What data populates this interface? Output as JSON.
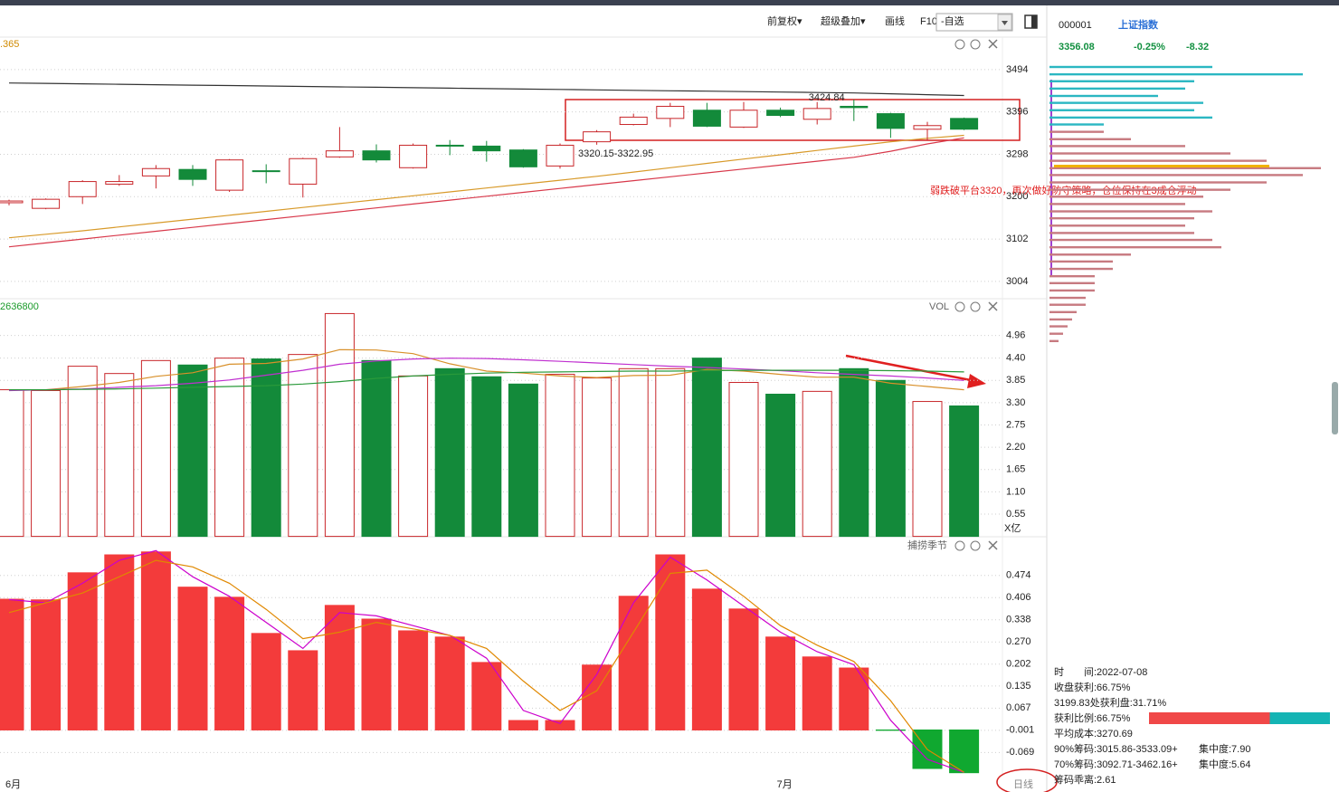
{
  "toolbar": {
    "items": [
      "前复权▾",
      "超级叠加▾",
      "画线",
      "F10"
    ],
    "watchlist": "-自选"
  },
  "stock_info": {
    "code": "000001",
    "name": "上证指数",
    "price": "3356.08",
    "change_pct": "-0.25%",
    "change": "-8.32"
  },
  "chip_stats": {
    "rows": [
      [
        "时　　间:2022-07-08"
      ],
      [
        "收盘获利:66.75%"
      ],
      [
        "3199.83处获利盘:31.71%"
      ],
      [
        "获利比例:66.75%"
      ],
      [
        "平均成本:3270.69"
      ],
      [
        "90%筹码:3015.86-3533.09+",
        "集中度:7.90"
      ],
      [
        "70%筹码:3092.71-3462.16+",
        "集中度:5.64"
      ],
      [
        "筹码乖离:2.61"
      ]
    ],
    "profit_ratio": 66.75
  },
  "period": "日线",
  "chart_data": [
    {
      "type": "candlestick",
      "corner_label": ".365",
      "open": [
        3186,
        3173,
        3200,
        3229,
        3248,
        3263,
        3215,
        3260,
        3229,
        3292,
        3306,
        3267,
        3319,
        3317,
        3308,
        3271,
        3327,
        3367,
        3381,
        3400,
        3361,
        3400,
        3379,
        3409,
        3392,
        3356,
        3381
      ],
      "high": [
        3193,
        3196,
        3238,
        3250,
        3273,
        3273,
        3287,
        3275,
        3290,
        3361,
        3321,
        3323,
        3331,
        3329,
        3310,
        3323,
        3354,
        3392,
        3417,
        3417,
        3419,
        3406,
        3419,
        3424.84,
        3394,
        3373,
        3383
      ],
      "low": [
        3180,
        3171,
        3183,
        3225,
        3219,
        3225,
        3211,
        3231,
        3198,
        3290,
        3279,
        3265,
        3296,
        3281,
        3267,
        3265,
        3320.15,
        3365,
        3361,
        3361,
        3359,
        3384,
        3367,
        3375,
        3336,
        3331,
        3354
      ],
      "close": [
        3190,
        3194,
        3235,
        3235,
        3265,
        3240,
        3285,
        3258,
        3288,
        3306,
        3285,
        3319,
        3317,
        3306,
        3269,
        3319,
        3350,
        3384,
        3409,
        3363,
        3400,
        3388,
        3404,
        3406,
        3358,
        3364.4,
        3356.08
      ],
      "up_color": "#c8262a",
      "down_color": "#138a3a",
      "lines": [
        {
          "color": "#333333",
          "values": [
            3463,
            3462,
            3461,
            3460,
            3459,
            3458,
            3457,
            3456,
            3455,
            3454,
            3453,
            3452,
            3451,
            3450,
            3449,
            3448,
            3447,
            3446,
            3445,
            3444,
            3443,
            3442,
            3441,
            3440,
            3438,
            3436,
            3434
          ]
        },
        {
          "color": "#d89a2a",
          "values": [
            3105,
            3113,
            3121,
            3130,
            3139,
            3148,
            3157,
            3166,
            3175,
            3184,
            3193,
            3202,
            3211,
            3220,
            3229,
            3238,
            3247,
            3257,
            3267,
            3277,
            3287,
            3297,
            3307,
            3317,
            3327,
            3335,
            3342
          ]
        },
        {
          "color": "#d8384a",
          "values": [
            3084,
            3093,
            3102,
            3111,
            3120,
            3129,
            3138,
            3147,
            3156,
            3165,
            3174,
            3183,
            3192,
            3201,
            3210,
            3219,
            3228,
            3237,
            3246,
            3255,
            3264,
            3273,
            3282,
            3291,
            3305,
            3322,
            3336
          ]
        }
      ],
      "annotations": [
        "3320.15-3322.95",
        "弱跌破平台3320，再次做好防守策略，仓位保持在3成仓浮动"
      ],
      "ylim": [
        2964,
        3567
      ],
      "yticks": [
        3004,
        3102,
        3200,
        3298,
        3396,
        3494
      ],
      "grid": true
    },
    {
      "type": "bar",
      "title": "VOL",
      "corner_label": "2636800",
      "unit": "X亿",
      "values": [
        3.62,
        3.6,
        4.2,
        4.02,
        4.34,
        4.23,
        4.4,
        4.38,
        4.49,
        5.5,
        4.34,
        3.96,
        4.14,
        3.94,
        3.76,
        4.0,
        3.91,
        4.14,
        4.14,
        4.4,
        3.8,
        3.51,
        3.58,
        4.14,
        3.85,
        3.33,
        3.22
      ],
      "up_color": "#c8262a",
      "down_color": "#138a3a",
      "lines": [
        {
          "color": "#d8902a",
          "values": [
            3.62,
            3.62,
            3.7,
            3.8,
            3.95,
            4.04,
            4.25,
            4.27,
            4.38,
            4.61,
            4.6,
            4.51,
            4.26,
            4.08,
            4.03,
            3.96,
            3.92,
            3.97,
            3.98,
            4.12,
            4.08,
            4.0,
            3.93,
            3.93,
            3.78,
            3.7,
            3.62
          ]
        },
        {
          "color": "#c030d0",
          "values": [
            3.6,
            3.62,
            3.64,
            3.68,
            3.72,
            3.78,
            3.86,
            3.98,
            4.1,
            4.25,
            4.33,
            4.38,
            4.4,
            4.39,
            4.36,
            4.32,
            4.28,
            4.24,
            4.2,
            4.17,
            4.13,
            4.09,
            4.04,
            4.0,
            3.96,
            3.91,
            3.85
          ]
        },
        {
          "color": "#2a9a3a",
          "values": [
            3.62,
            3.62,
            3.63,
            3.64,
            3.66,
            3.68,
            3.7,
            3.72,
            3.76,
            3.82,
            3.9,
            3.96,
            4.0,
            4.03,
            4.05,
            4.06,
            4.07,
            4.08,
            4.08,
            4.09,
            4.1,
            4.1,
            4.1,
            4.1,
            4.09,
            4.08,
            4.06
          ]
        }
      ],
      "ylim": [
        0,
        5.8
      ],
      "yticks": [
        0.55,
        {
          "value": 1.1,
          "label": "1.10"
        },
        1.65,
        {
          "value": 2.2,
          "label": "2.20"
        },
        2.75,
        {
          "value": 3.3,
          "label": "3.30"
        },
        3.85,
        {
          "value": 4.4,
          "label": "4.40"
        },
        4.96
      ],
      "grid": true
    },
    {
      "type": "bar",
      "title": "捕捞季节",
      "categories": [
        "6月",
        null,
        null,
        null,
        null,
        null,
        null,
        null,
        null,
        null,
        null,
        null,
        null,
        null,
        null,
        null,
        null,
        null,
        null,
        null,
        null,
        "7月",
        null,
        null,
        null,
        null,
        null
      ],
      "values": [
        0.401,
        0.399,
        0.482,
        0.537,
        0.546,
        0.438,
        0.407,
        0.296,
        0.243,
        0.382,
        0.34,
        0.304,
        0.285,
        0.207,
        0.029,
        0.029,
        0.199,
        0.41,
        0.537,
        0.432,
        0.371,
        0.285,
        0.224,
        0.19,
        -0.001,
        -0.118,
        -0.131
      ],
      "pos_color": "#f33b3b",
      "neg_color": "#10a830",
      "lines": [
        {
          "color": "#cc00cc",
          "values": [
            0.4,
            0.39,
            0.45,
            0.52,
            0.55,
            0.47,
            0.41,
            0.33,
            0.25,
            0.36,
            0.35,
            0.32,
            0.29,
            0.22,
            0.06,
            0.02,
            0.17,
            0.39,
            0.53,
            0.46,
            0.38,
            0.3,
            0.24,
            0.2,
            0.03,
            -0.09,
            -0.13
          ]
        },
        {
          "color": "#e08800",
          "values": [
            0.36,
            0.39,
            0.42,
            0.47,
            0.52,
            0.5,
            0.45,
            0.37,
            0.28,
            0.3,
            0.33,
            0.31,
            0.29,
            0.25,
            0.15,
            0.06,
            0.12,
            0.3,
            0.48,
            0.49,
            0.41,
            0.32,
            0.26,
            0.21,
            0.09,
            -0.06,
            -0.13
          ]
        }
      ],
      "ylim": [
        -0.143,
        0.587
      ],
      "yticks": [
        0.474,
        0.406,
        0.338,
        {
          "value": 0.27,
          "label": "0.270"
        },
        0.202,
        0.135,
        0.067,
        -0.001,
        -0.069
      ],
      "grid": true
    },
    {
      "type": "hbar",
      "y": [
        3500,
        3483,
        3467,
        3450,
        3433,
        3417,
        3400,
        3383,
        3367,
        3350,
        3333,
        3317,
        3300,
        3283,
        3266,
        3250,
        3233,
        3216,
        3200,
        3183,
        3166,
        3150,
        3133,
        3116,
        3100,
        3083,
        3066,
        3050,
        3033,
        3016,
        3000,
        2983,
        2966,
        2950,
        2933,
        2916,
        2900,
        2883,
        2866
      ],
      "values": [
        180,
        280,
        160,
        150,
        120,
        170,
        160,
        180,
        60,
        60,
        90,
        150,
        200,
        240,
        300,
        280,
        240,
        200,
        170,
        150,
        180,
        160,
        150,
        160,
        180,
        190,
        90,
        70,
        70,
        50,
        50,
        50,
        40,
        40,
        30,
        25,
        20,
        15,
        10
      ],
      "xlim": [
        0,
        320
      ],
      "color_above": "#2bb7c2",
      "color_below": "#c77a80",
      "cost_line": {
        "value": 3270.69,
        "color": "#f0b000"
      }
    }
  ]
}
